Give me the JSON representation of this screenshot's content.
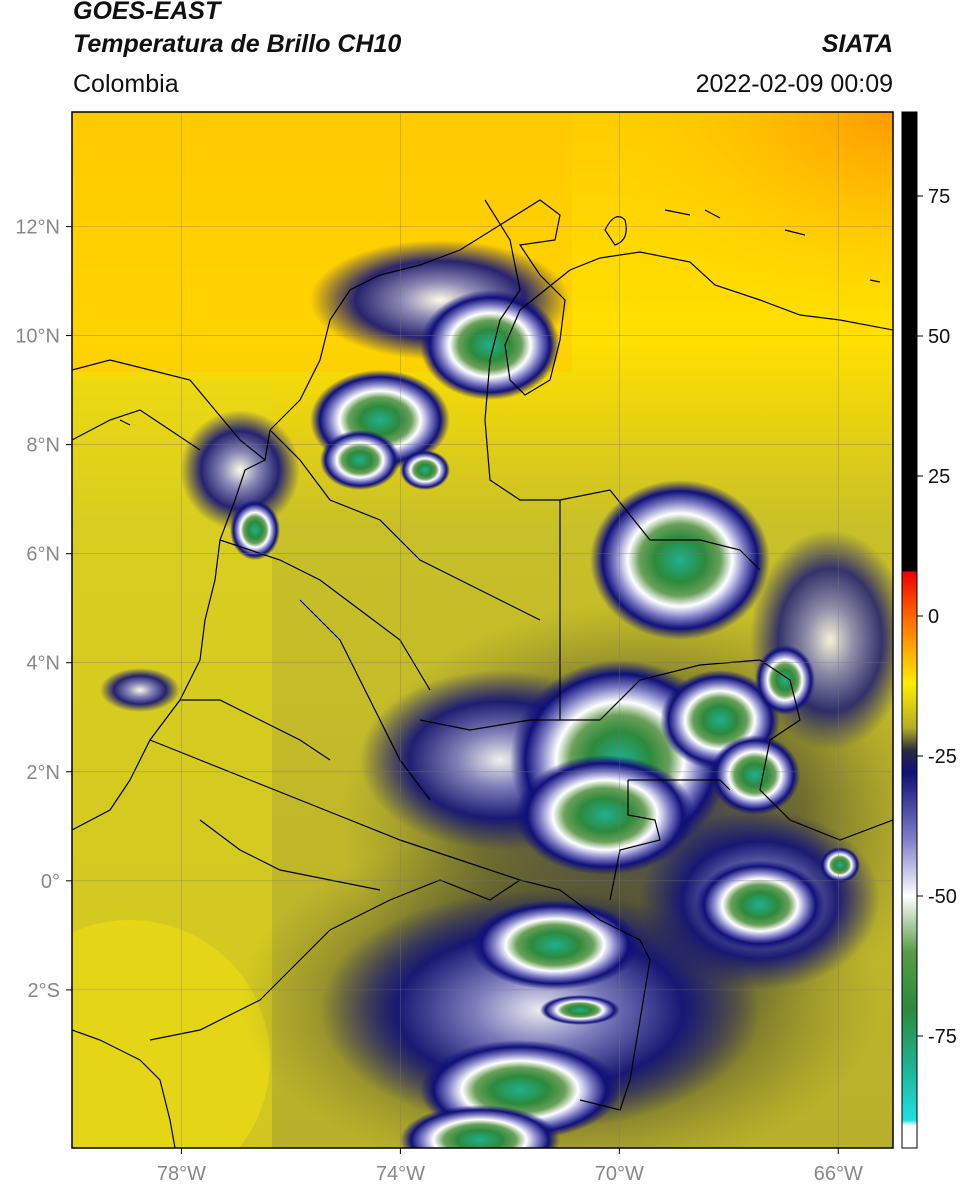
{
  "header": {
    "satellite": "GOES-EAST",
    "product": "Temperatura de Brillo CH10",
    "organization": "SIATA",
    "region": "Colombia",
    "timestamp": "2022-02-09 00:09"
  },
  "map": {
    "lon_range": [
      -80,
      -65
    ],
    "lat_range": [
      -4.9,
      14.1
    ],
    "lon_ticks": [
      {
        "value": -78,
        "label": "78°W"
      },
      {
        "value": -74,
        "label": "74°W"
      },
      {
        "value": -70,
        "label": "70°W"
      },
      {
        "value": -66,
        "label": "66°W"
      }
    ],
    "lat_ticks": [
      {
        "value": 12,
        "label": "12°N"
      },
      {
        "value": 10,
        "label": "10°N"
      },
      {
        "value": 8,
        "label": "8°N"
      },
      {
        "value": 6,
        "label": "6°N"
      },
      {
        "value": 4,
        "label": "4°N"
      },
      {
        "value": 2,
        "label": "2°N"
      },
      {
        "value": 0,
        "label": "0°"
      },
      {
        "value": -2,
        "label": "2°S"
      }
    ],
    "gridlines": true
  },
  "colorbar": {
    "range": [
      -95,
      90
    ],
    "stops": [
      {
        "value": 90,
        "color": "#000000"
      },
      {
        "value": 8,
        "color": "#000000"
      },
      {
        "value": 7.9,
        "color": "#ee0000"
      },
      {
        "value": 0,
        "color": "#ff6600"
      },
      {
        "value": -12,
        "color": "#ffee00"
      },
      {
        "value": -20,
        "color": "#b5ad25"
      },
      {
        "value": -24,
        "color": "#2a2a40"
      },
      {
        "value": -28,
        "color": "#10107a"
      },
      {
        "value": -40,
        "color": "#8080c8"
      },
      {
        "value": -50,
        "color": "#ffffff"
      },
      {
        "value": -60,
        "color": "#5a9a4a"
      },
      {
        "value": -70,
        "color": "#2c8a3c"
      },
      {
        "value": -80,
        "color": "#20b090"
      },
      {
        "value": -90,
        "color": "#20e0e0"
      },
      {
        "value": -91,
        "color": "#ffffff"
      },
      {
        "value": -95,
        "color": "#ffffff"
      }
    ],
    "ticks": [
      {
        "value": 75,
        "label": "75"
      },
      {
        "value": 50,
        "label": "50"
      },
      {
        "value": 25,
        "label": "25"
      },
      {
        "value": 0,
        "label": "0"
      },
      {
        "value": -25,
        "label": "-25"
      },
      {
        "value": -50,
        "label": "-50"
      },
      {
        "value": -75,
        "label": "-75"
      }
    ]
  }
}
